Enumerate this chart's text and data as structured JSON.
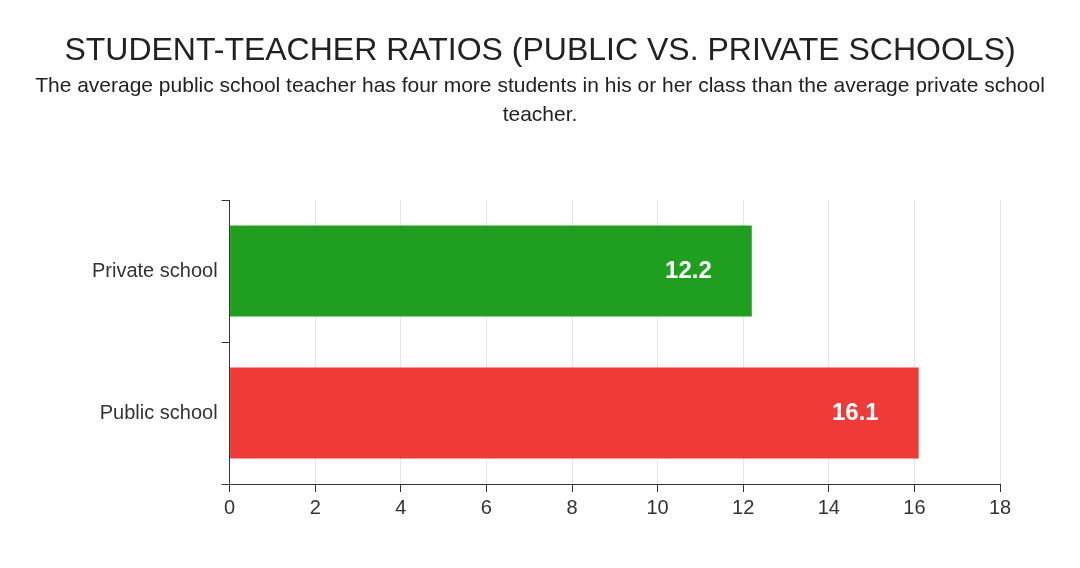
{
  "chart_data": {
    "type": "bar",
    "orientation": "horizontal",
    "title": "STUDENT-TEACHER RATIOS (PUBLIC VS. PRIVATE SCHOOLS)",
    "subtitle": "The average public school teacher has four more students in his or her class than the average private school teacher.",
    "categories": [
      "Private school",
      "Public school"
    ],
    "values": [
      12.2,
      16.1
    ],
    "colors": [
      "#1f9e1f",
      "#f03a38"
    ],
    "xlim": [
      0,
      18
    ],
    "xticks": [
      0,
      2,
      4,
      6,
      8,
      10,
      12,
      14,
      16,
      18
    ],
    "grid": "x",
    "data_labels": true,
    "legend": false
  }
}
